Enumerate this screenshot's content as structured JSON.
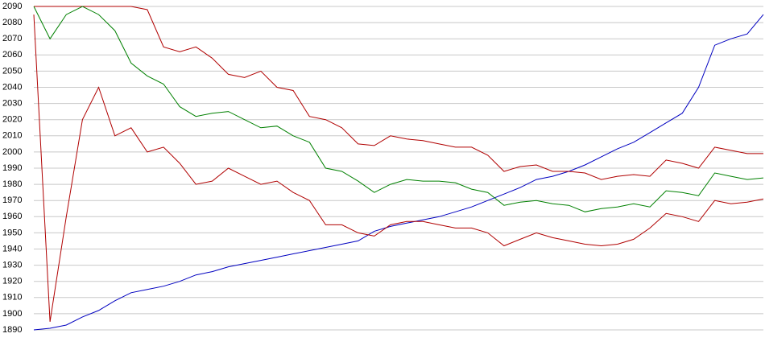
{
  "chart_data": {
    "type": "line",
    "ylim": [
      1890,
      2090
    ],
    "yticks": [
      1890,
      1900,
      1910,
      1920,
      1930,
      1940,
      1950,
      1960,
      1970,
      1980,
      1990,
      2000,
      2010,
      2020,
      2030,
      2040,
      2050,
      2060,
      2070,
      2080,
      2090
    ],
    "grid": true,
    "series": [
      {
        "color": "#0000c0",
        "values": [
          1890,
          1891,
          1893,
          1898,
          1902,
          1908,
          1913,
          1915,
          1917,
          1920,
          1924,
          1926,
          1929,
          1931,
          1933,
          1935,
          1937,
          1939,
          1941,
          1943,
          1945,
          1951,
          1954,
          1956,
          1958,
          1960,
          1963,
          1966,
          1970,
          1974,
          1978,
          1983,
          1985,
          1988,
          1992,
          1997,
          2002,
          2006,
          2012,
          2018,
          2024,
          2040,
          2066,
          2070,
          2073,
          2085
        ]
      },
      {
        "color": "#b00000",
        "values": [
          2090,
          2090,
          2090,
          2090,
          2090,
          2090,
          2090,
          2088,
          2065,
          2062,
          2065,
          2058,
          2048,
          2046,
          2050,
          2040,
          2038,
          2022,
          2020,
          2015,
          2005,
          2004,
          2010,
          2008,
          2007,
          2005,
          2003,
          2003,
          1998,
          1988,
          1991,
          1992,
          1988,
          1988,
          1987,
          1983,
          1985,
          1986,
          1985,
          1995,
          1993,
          1990,
          2003,
          2001,
          1999,
          1999
        ]
      },
      {
        "color": "#008000",
        "values": [
          2090,
          2070,
          2085,
          2090,
          2085,
          2075,
          2055,
          2047,
          2042,
          2028,
          2022,
          2024,
          2025,
          2020,
          2015,
          2016,
          2010,
          2006,
          1990,
          1988,
          1982,
          1975,
          1980,
          1983,
          1982,
          1982,
          1981,
          1977,
          1975,
          1967,
          1969,
          1970,
          1968,
          1967,
          1963,
          1965,
          1966,
          1968,
          1966,
          1976,
          1975,
          1973,
          1987,
          1985,
          1983,
          1984
        ]
      },
      {
        "color": "#b00000",
        "values": [
          2085,
          1895,
          1960,
          2020,
          2040,
          2010,
          2015,
          2000,
          2003,
          1993,
          1980,
          1982,
          1990,
          1985,
          1980,
          1982,
          1975,
          1970,
          1955,
          1955,
          1950,
          1948,
          1955,
          1957,
          1957,
          1955,
          1953,
          1953,
          1950,
          1942,
          1946,
          1950,
          1947,
          1945,
          1943,
          1942,
          1943,
          1946,
          1953,
          1962,
          1960,
          1957,
          1970,
          1968,
          1969,
          1971
        ]
      }
    ]
  }
}
